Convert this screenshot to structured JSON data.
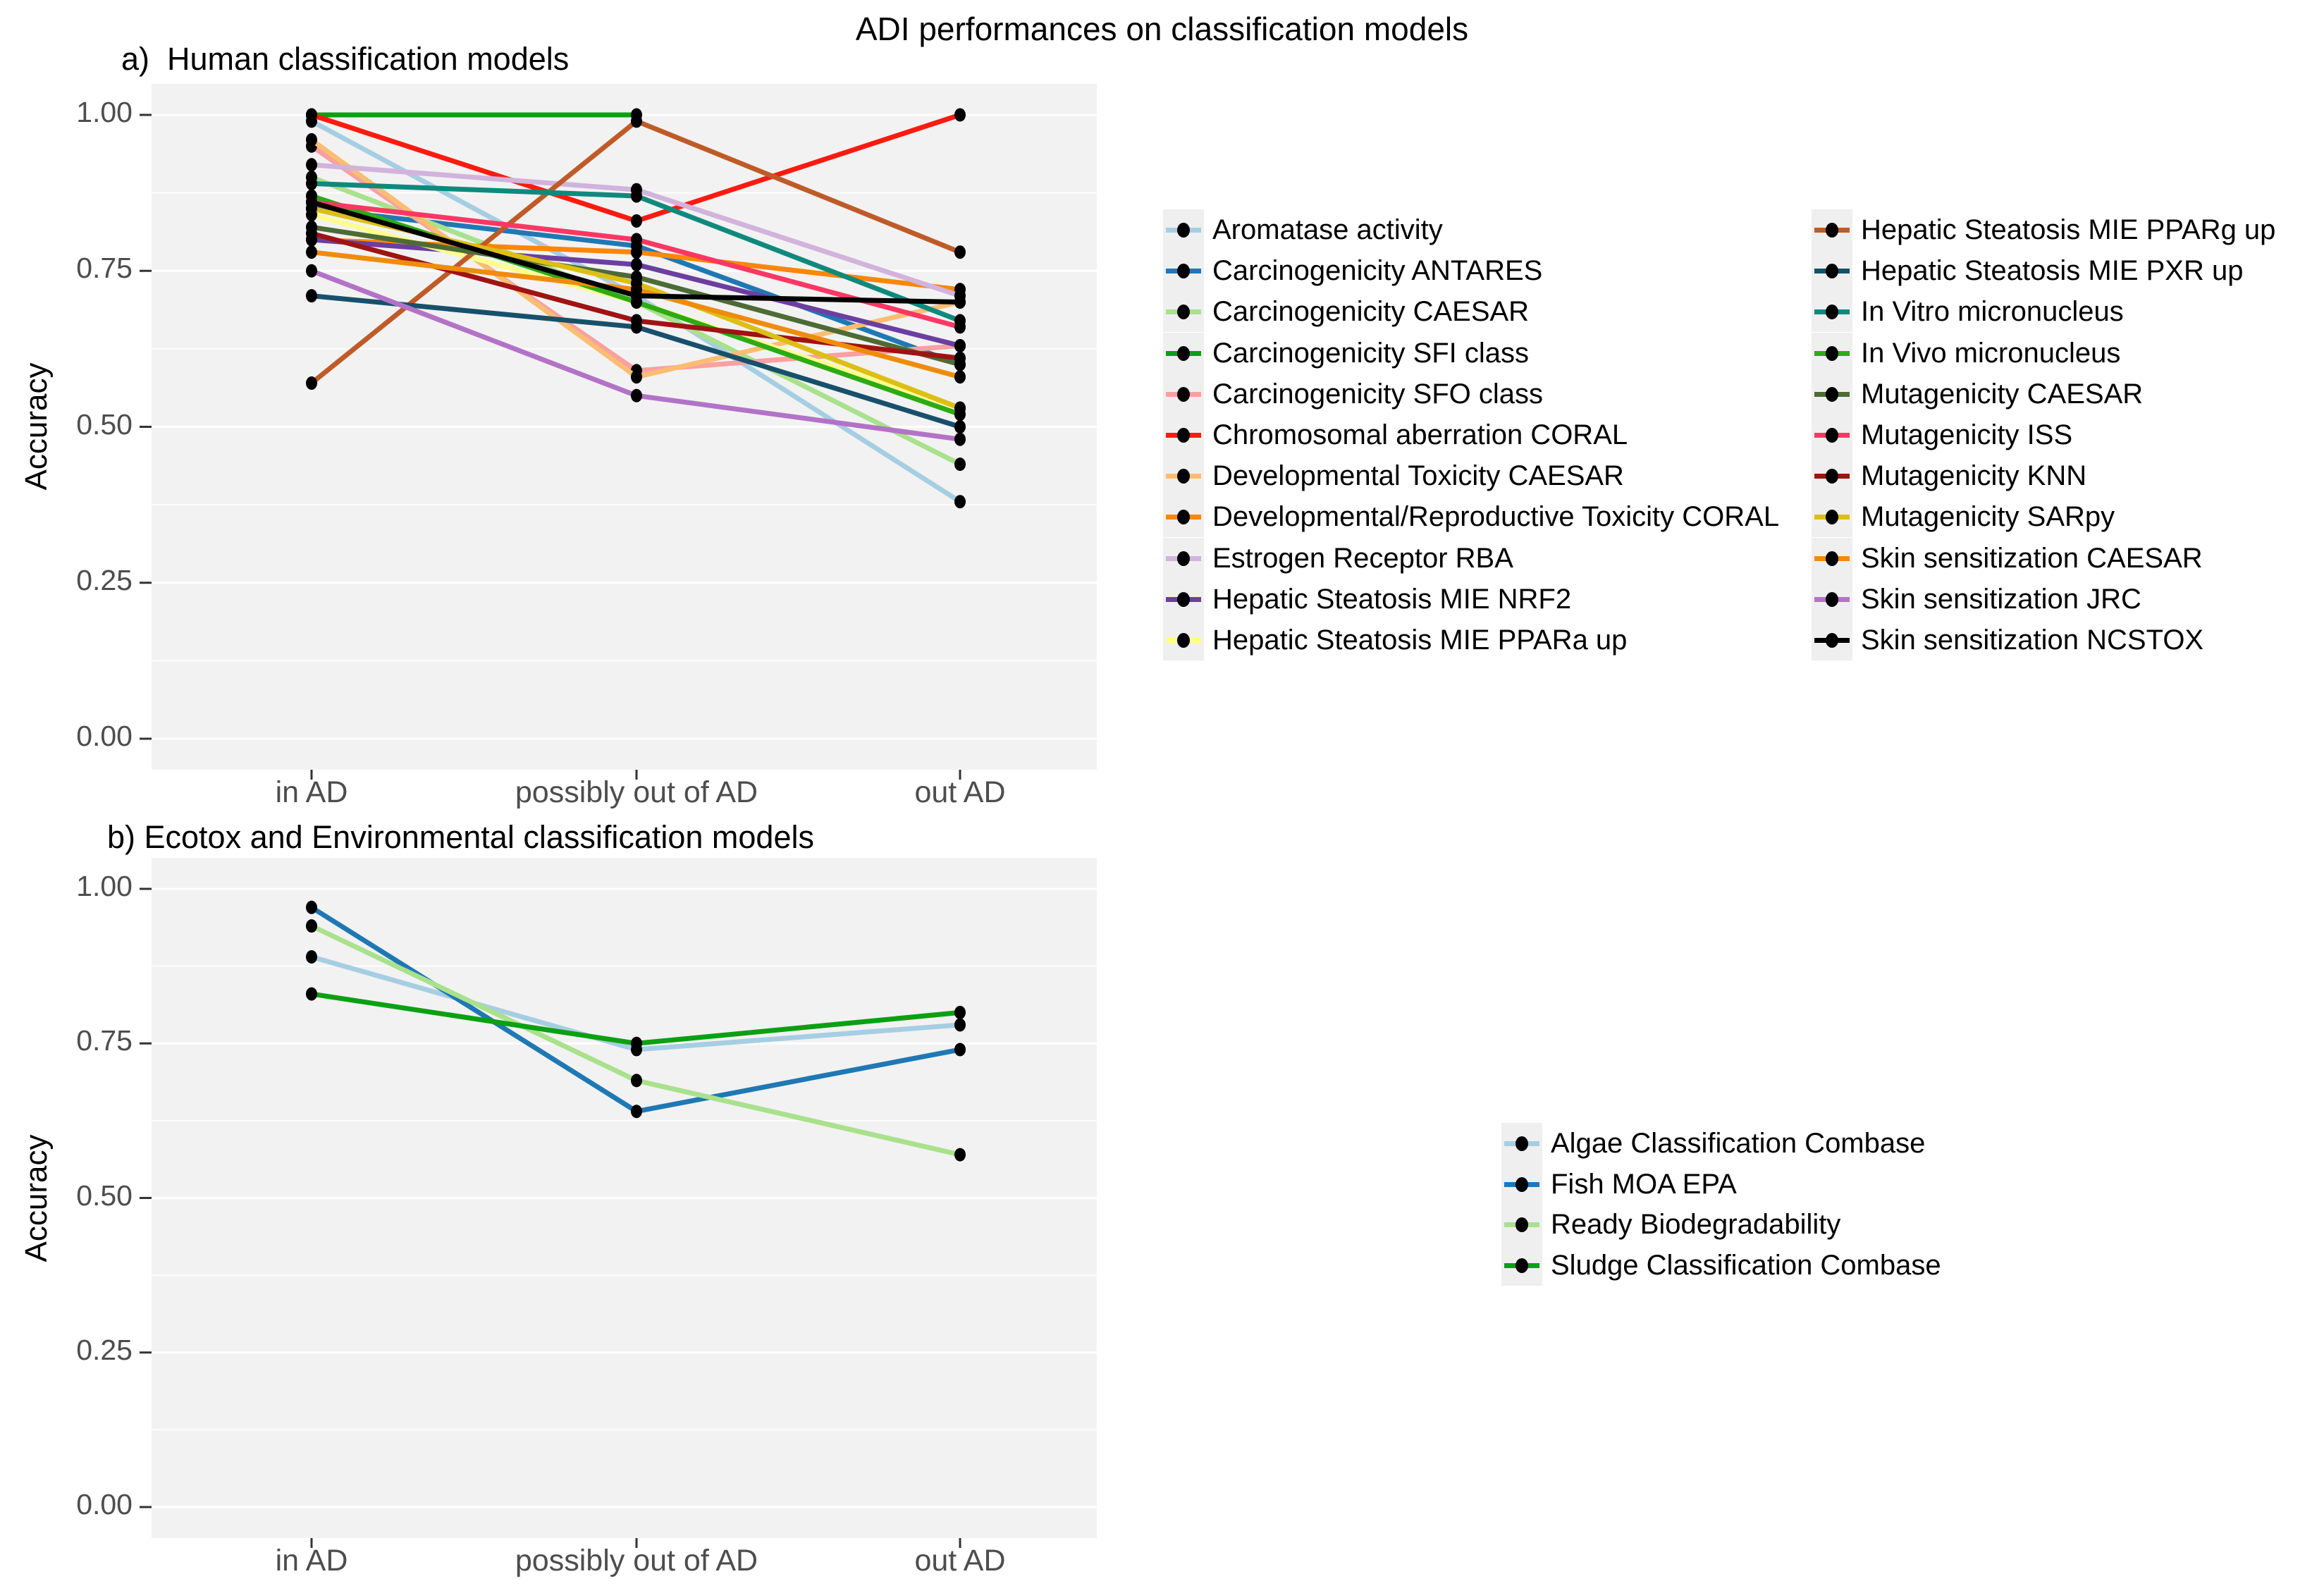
{
  "title": "ADI performances on classification models",
  "axis": {
    "y_tick_labels": [
      "1.00",
      "0.75",
      "0.50",
      "0.25",
      "0.00"
    ],
    "y_tick_values": [
      1.0,
      0.75,
      0.5,
      0.25,
      0.0
    ]
  },
  "colors": {
    "panel_background": "#f2f2f2",
    "gridline": "#ffffff",
    "tick_text": "#4d4d4d",
    "tick_mark": "#333333",
    "point": "#000000"
  },
  "chart_data": [
    {
      "type": "line",
      "title": "a)  Human classification models",
      "ylabel": "Accuracy",
      "xlabel": "",
      "ylim": [
        0,
        1
      ],
      "grid": true,
      "legend_position": "right",
      "categories": [
        "in AD",
        "possibly out of AD",
        "out AD"
      ],
      "series": [
        {
          "name": "Aromatase activity",
          "color": "#a6cee3",
          "values": [
            0.99,
            0.71,
            0.38
          ]
        },
        {
          "name": "Carcinogenicity ANTARES",
          "color": "#1f78b4",
          "values": [
            0.85,
            0.79,
            0.6
          ]
        },
        {
          "name": "Carcinogenicity CAESAR",
          "color": "#a9e18c",
          "values": [
            0.9,
            0.7,
            0.44
          ]
        },
        {
          "name": "Carcinogenicity SFI class",
          "color": "#0ba012",
          "values": [
            1.0,
            1.0,
            null
          ]
        },
        {
          "name": "Carcinogenicity SFO class",
          "color": "#f9a0a2",
          "values": [
            0.95,
            0.59,
            0.63
          ]
        },
        {
          "name": "Chromosomal aberration CORAL",
          "color": "#fa1b10",
          "values": [
            1.0,
            0.83,
            1.0
          ]
        },
        {
          "name": "Developmental Toxicity CAESAR",
          "color": "#fbbd72",
          "values": [
            0.96,
            0.58,
            0.7
          ]
        },
        {
          "name": "Developmental/Reproductive Toxicity CORAL",
          "color": "#fc8608",
          "values": [
            0.8,
            0.78,
            0.72
          ]
        },
        {
          "name": "Estrogen Receptor RBA",
          "color": "#d1b3dc",
          "values": [
            0.92,
            0.88,
            0.71
          ]
        },
        {
          "name": "Hepatic Steatosis MIE NRF2",
          "color": "#6b3fa0",
          "values": [
            0.8,
            0.76,
            0.63
          ]
        },
        {
          "name": "Hepatic Steatosis MIE PPARa up",
          "color": "#fdfd8d",
          "values": [
            0.84,
            0.7,
            0.53
          ]
        },
        {
          "name": "Hepatic Steatosis MIE PPARg up",
          "color": "#bf5b28",
          "values": [
            0.57,
            0.99,
            0.78
          ]
        },
        {
          "name": "Hepatic Steatosis MIE PXR up",
          "color": "#17506b",
          "values": [
            0.71,
            0.66,
            0.5
          ]
        },
        {
          "name": "In Vitro micronucleus",
          "color": "#10897d",
          "values": [
            0.89,
            0.87,
            0.67
          ]
        },
        {
          "name": "In Vivo micronucleus",
          "color": "#2dab14",
          "values": [
            0.87,
            0.7,
            0.52
          ]
        },
        {
          "name": "Mutagenicity CAESAR",
          "color": "#4d6b35",
          "values": [
            0.82,
            0.74,
            0.6
          ]
        },
        {
          "name": "Mutagenicity ISS",
          "color": "#fc3764",
          "values": [
            0.86,
            0.8,
            0.66
          ]
        },
        {
          "name": "Mutagenicity KNN",
          "color": "#a01313",
          "values": [
            0.81,
            0.67,
            0.61
          ]
        },
        {
          "name": "Mutagenicity SARpy",
          "color": "#ddbf13",
          "values": [
            0.85,
            0.73,
            0.53
          ]
        },
        {
          "name": "Skin sensitization CAESAR",
          "color": "#ef8c0c",
          "values": [
            0.78,
            0.72,
            0.58
          ]
        },
        {
          "name": "Skin sensitization JRC",
          "color": "#b273c7",
          "values": [
            0.75,
            0.55,
            0.48
          ]
        },
        {
          "name": "Skin sensitization NCSTOX",
          "color": "#000000",
          "values": [
            0.86,
            0.71,
            0.7
          ]
        }
      ]
    },
    {
      "type": "line",
      "title": "b) Ecotox and Environmental classification models",
      "ylabel": "Accuracy",
      "xlabel": "",
      "ylim": [
        0,
        1
      ],
      "grid": true,
      "legend_position": "right",
      "categories": [
        "in AD",
        "possibly out of AD",
        "out AD"
      ],
      "series": [
        {
          "name": "Algae Classification Combase",
          "color": "#a6cee3",
          "values": [
            0.89,
            0.74,
            0.78
          ]
        },
        {
          "name": "Fish MOA EPA",
          "color": "#1f78b4",
          "values": [
            0.97,
            0.64,
            0.74
          ]
        },
        {
          "name": "Ready Biodegradability",
          "color": "#a9e18c",
          "values": [
            0.94,
            0.69,
            0.57
          ]
        },
        {
          "name": "Sludge Classification Combase",
          "color": "#0ba012",
          "values": [
            0.83,
            0.75,
            0.8
          ]
        }
      ]
    }
  ]
}
